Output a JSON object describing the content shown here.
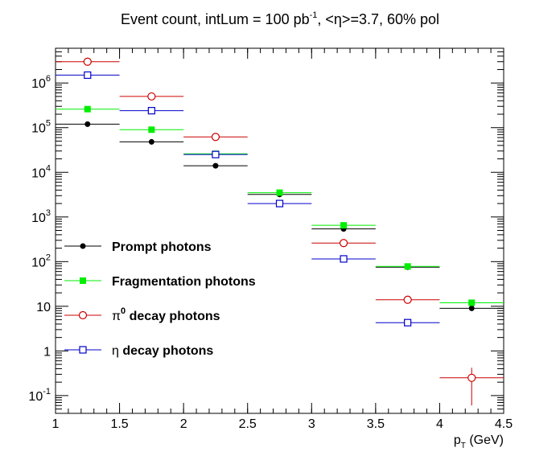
{
  "chart_data": {
    "type": "scatter",
    "title": {
      "prefix": "Event count, intLum = 100 pb",
      "superscript": "-1",
      "suffix": ", <η>=3.7, 60% pol"
    },
    "xlabel": "p",
    "xlabel_sub": "T",
    "xlabel_unit": " (GeV)",
    "ylabel": "",
    "xlim": [
      1,
      4.5
    ],
    "ylim": [
      0.04,
      6000000
    ],
    "yscale": "log",
    "grid": false,
    "legend_position": "middle-left",
    "x_ticks": [
      "1",
      "1.5",
      "2",
      "2.5",
      "3",
      "3.5",
      "4",
      "4.5"
    ],
    "y_ticks": [
      {
        "value": 0.1,
        "base": "10",
        "exp": "-1"
      },
      {
        "value": 1,
        "base": "1",
        "exp": ""
      },
      {
        "value": 10,
        "base": "10",
        "exp": ""
      },
      {
        "value": 100,
        "base": "10",
        "exp": "2"
      },
      {
        "value": 1000,
        "base": "10",
        "exp": "3"
      },
      {
        "value": 10000,
        "base": "10",
        "exp": "4"
      },
      {
        "value": 100000,
        "base": "10",
        "exp": "5"
      },
      {
        "value": 1000000,
        "base": "10",
        "exp": "6"
      }
    ],
    "bins": [
      {
        "low": 1.0,
        "high": 1.5,
        "center": 1.25
      },
      {
        "low": 1.5,
        "high": 2.0,
        "center": 1.75
      },
      {
        "low": 2.0,
        "high": 2.5,
        "center": 2.25
      },
      {
        "low": 2.5,
        "high": 3.0,
        "center": 2.75
      },
      {
        "low": 3.0,
        "high": 3.5,
        "center": 3.25
      },
      {
        "low": 3.5,
        "high": 4.0,
        "center": 3.75
      },
      {
        "low": 4.0,
        "high": 4.5,
        "center": 4.25
      }
    ],
    "series": [
      {
        "name": "Prompt photons",
        "label_prefix": "",
        "label_sup": "",
        "label_rest": "Prompt photons",
        "color": "#000000",
        "marker": "filled-circle",
        "values": [
          120000,
          48000,
          14000,
          3200,
          540,
          75,
          9
        ]
      },
      {
        "name": "Fragmentation photons",
        "label_prefix": "",
        "label_sup": "",
        "label_rest": "Fragmentation photons",
        "color": "#00ee00",
        "marker": "filled-square",
        "values": [
          260000,
          90000,
          26000,
          3500,
          650,
          78,
          12
        ]
      },
      {
        "name": "π0 decay photons",
        "label_prefix": "π",
        "label_sup": "0",
        "label_rest": " decay photons",
        "color": "#cc0000",
        "marker": "open-circle",
        "values": [
          3000000,
          500000,
          62000,
          null,
          260,
          14,
          0.25
        ],
        "y_err": [
          null,
          null,
          null,
          null,
          null,
          null,
          [
            0.06,
            0.42
          ]
        ]
      },
      {
        "name": "η decay photons",
        "label_prefix": "η",
        "label_sup": "",
        "label_rest": " decay photons",
        "color": "#0000cc",
        "marker": "open-square",
        "values": [
          1500000,
          240000,
          25000,
          2000,
          115,
          4.3,
          null
        ]
      }
    ]
  }
}
